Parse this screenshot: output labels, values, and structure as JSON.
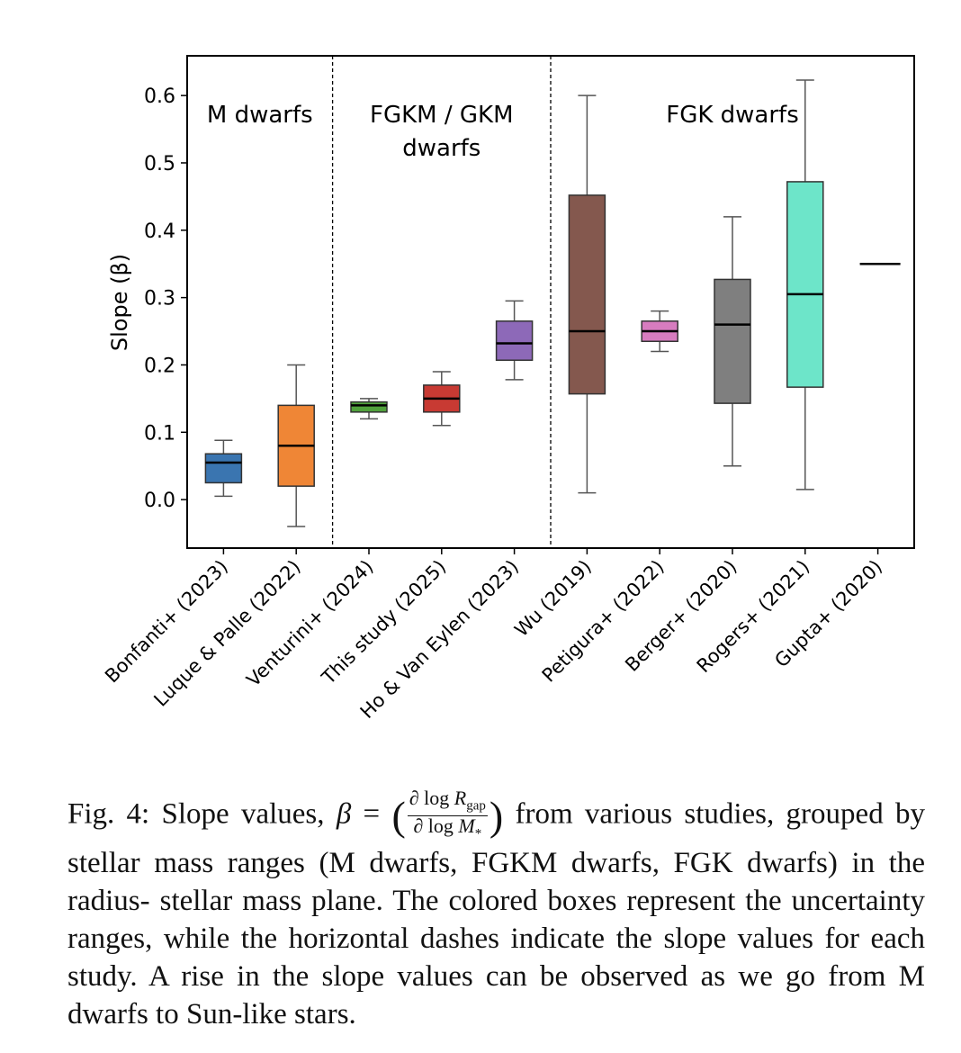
{
  "chart_data": {
    "type": "box",
    "ylabel": "Slope (β)",
    "ylim": [
      -0.072,
      0.659
    ],
    "yticks": [
      "0.0",
      "0.1",
      "0.2",
      "0.3",
      "0.4",
      "0.5",
      "0.6"
    ],
    "ytick_values": [
      0.0,
      0.1,
      0.2,
      0.3,
      0.4,
      0.5,
      0.6
    ],
    "grid": false,
    "groups": [
      {
        "label_lines": [
          "M dwarfs"
        ],
        "range": [
          0,
          1
        ]
      },
      {
        "label_lines": [
          "FGKM / GKM",
          "dwarfs"
        ],
        "range": [
          2,
          4
        ]
      },
      {
        "label_lines": [
          "FGK dwarfs"
        ],
        "range": [
          5,
          9
        ]
      }
    ],
    "categories": [
      "Bonfanti+ (2023)",
      "Luque & Palle (2022)",
      "Venturini+ (2024)",
      "This study (2025)",
      "Ho & Van Eylen (2023)",
      "Wu (2019)",
      "Petigura+ (2022)",
      "Berger+ (2020)",
      "Rogers+ (2021)",
      "Gupta+ (2020)"
    ],
    "boxes": [
      {
        "whisker_low": 0.005,
        "q1": 0.025,
        "median": 0.055,
        "q3": 0.068,
        "whisker_high": 0.088,
        "color": "#3a75b0"
      },
      {
        "whisker_low": -0.04,
        "q1": 0.02,
        "median": 0.08,
        "q3": 0.14,
        "whisker_high": 0.2,
        "color": "#ef8636"
      },
      {
        "whisker_low": 0.12,
        "q1": 0.13,
        "median": 0.14,
        "q3": 0.145,
        "whisker_high": 0.15,
        "color": "#50a13c"
      },
      {
        "whisker_low": 0.11,
        "q1": 0.13,
        "median": 0.15,
        "q3": 0.17,
        "whisker_high": 0.19,
        "color": "#c83a33"
      },
      {
        "whisker_low": 0.178,
        "q1": 0.207,
        "median": 0.232,
        "q3": 0.265,
        "whisker_high": 0.295,
        "color": "#8d69b8"
      },
      {
        "whisker_low": 0.01,
        "q1": 0.157,
        "median": 0.25,
        "q3": 0.452,
        "whisker_high": 0.6,
        "color": "#84584e"
      },
      {
        "whisker_low": 0.22,
        "q1": 0.235,
        "median": 0.25,
        "q3": 0.265,
        "whisker_high": 0.28,
        "color": "#d77cbf"
      },
      {
        "whisker_low": 0.05,
        "q1": 0.143,
        "median": 0.26,
        "q3": 0.327,
        "whisker_high": 0.42,
        "color": "#7f7f7f"
      },
      {
        "whisker_low": 0.015,
        "q1": 0.167,
        "median": 0.305,
        "q3": 0.472,
        "whisker_high": 0.623,
        "color": "#6de5c9"
      },
      {
        "median": 0.35
      }
    ]
  },
  "caption": {
    "prefix": "Fig. 4: Slope values, ",
    "beta": "β",
    "equals": " = ",
    "num_text": "∂ log ",
    "num_var": "R",
    "num_sub": "gap",
    "den_text": "∂ log ",
    "den_var": "M",
    "den_sub": "*",
    "rest": " from various studies, grouped by stellar mass ranges (M dwarfs, FGKM dwarfs, FGK dwarfs) in the radius- stellar mass plane. The colored boxes represent the uncertainty ranges, while the horizontal dashes indicate the slope values for each study. A rise in the slope values can be observed as we go from M dwarfs to Sun-like stars."
  }
}
